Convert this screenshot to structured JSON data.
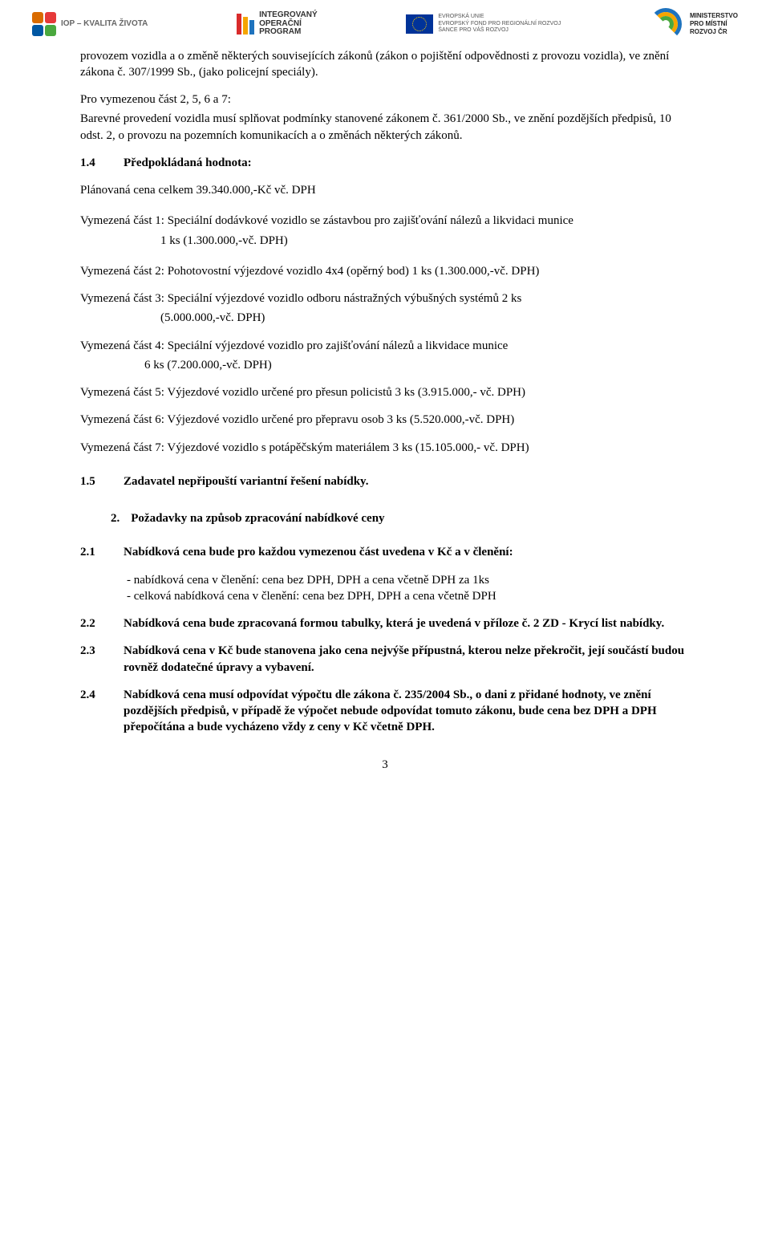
{
  "logos": {
    "iop_label": "IOP – KVALITA ŽIVOTA",
    "iop_colors": [
      "#d96b00",
      "#e63939",
      "#0057a3",
      "#4aa83e"
    ],
    "opint_label1": "INTEGROVANÝ",
    "opint_label2": "OPERAČNÍ",
    "opint_label3": "PROGRAM",
    "opint_bars": [
      {
        "h": 26,
        "c": "#d92b2b"
      },
      {
        "h": 22,
        "c": "#f5a500"
      },
      {
        "h": 18,
        "c": "#1e73be"
      }
    ],
    "eu_line1": "EVROPSKÁ UNIE",
    "eu_line2": "EVROPSKÝ FOND PRO REGIONÁLNÍ ROZVOJ",
    "eu_line3": "ŠANCE PRO VÁŠ ROZVOJ",
    "arc_colors": [
      "#1e73be",
      "#f5a500",
      "#4aa83e"
    ],
    "mmr_line1": "MINISTERSTVO",
    "mmr_line2": "PRO MÍSTNÍ",
    "mmr_line3": "ROZVOJ ČR"
  },
  "body": {
    "para1": "provozem vozidla a o změně některých souvisejících zákonů (zákon o pojištění odpovědnosti z provozu vozidla), ve znění zákona č. 307/1999 Sb., (jako policejní speciály).",
    "para2a": "Pro vymezenou část 2, 5, 6 a 7:",
    "para2b": "Barevné provedení vozidla musí splňovat podmínky stanovené zákonem č. 361/2000 Sb., ve znění pozdějších předpisů, 10 odst. 2, o provozu na pozemních komunikacích a o změnách některých zákonů.",
    "h14_num": "1.4",
    "h14_txt": "Předpokládaná hodnota:",
    "plan": "Plánovaná cena celkem 39.340.000,-Kč vč. DPH",
    "v1a": "Vymezená část 1: Speciální dodávkové vozidlo se zástavbou pro zajišťování nálezů a likvidaci munice",
    "v1b": "1 ks (1.300.000,-vč. DPH)",
    "v2": "Vymezená část 2: Pohotovostní výjezdové vozidlo 4x4 (opěrný bod) 1 ks (1.300.000,-vč. DPH)",
    "v3a": "Vymezená část 3: Speciální výjezdové vozidlo odboru nástražných výbušných systémů 2 ks",
    "v3b": "(5.000.000,-vč. DPH)",
    "v4a": "Vymezená část 4: Speciální výjezdové vozidlo pro zajišťování nálezů a likvidace munice",
    "v4b": "6 ks (7.200.000,-vč. DPH)",
    "v5": "Vymezená část 5: Výjezdové vozidlo určené pro přesun policistů 3 ks (3.915.000,- vč. DPH)",
    "v6": "Vymezená část 6: Výjezdové vozidlo určené pro přepravu osob 3 ks (5.520.000,-vč. DPH)",
    "v7": "Vymezená část 7: Výjezdové vozidlo s potápěčským materiálem 3 ks (15.105.000,- vč. DPH)",
    "h15_num": "1.5",
    "h15_txt": "Zadavatel nepřipouští variantní řešení nabídky.",
    "s2_num": "2.",
    "s2_txt": "Požadavky na způsob zpracování nabídkové ceny",
    "h21_num": "2.1",
    "h21_txt": "Nabídková cena bude pro každou vymezenou část uvedena v Kč a v členění:",
    "b21_li1": "nabídková cena v členění: cena bez DPH, DPH a cena včetně DPH za 1ks",
    "b21_li2": "celková nabídková cena v členění: cena bez DPH, DPH a cena včetně DPH",
    "h22_num": "2.2",
    "h22_txt": "Nabídková cena bude zpracovaná formou tabulky, která je uvedená v příloze č. 2 ZD - Krycí list nabídky.",
    "h23_num": "2.3",
    "h23_txt": "Nabídková cena v Kč bude stanovena jako cena nejvýše přípustná, kterou nelze překročit, její součástí budou rovněž dodatečné úpravy a vybavení.",
    "h24_num": "2.4",
    "h24_txt": "Nabídková cena musí odpovídat výpočtu dle zákona č. 235/2004 Sb., o dani z přidané hodnoty, ve znění pozdějších předpisů, v případě že výpočet nebude odpovídat tomuto zákonu, bude cena bez DPH a DPH přepočítána a bude vycházeno vždy z ceny v Kč včetně DPH.",
    "page_num": "3"
  }
}
